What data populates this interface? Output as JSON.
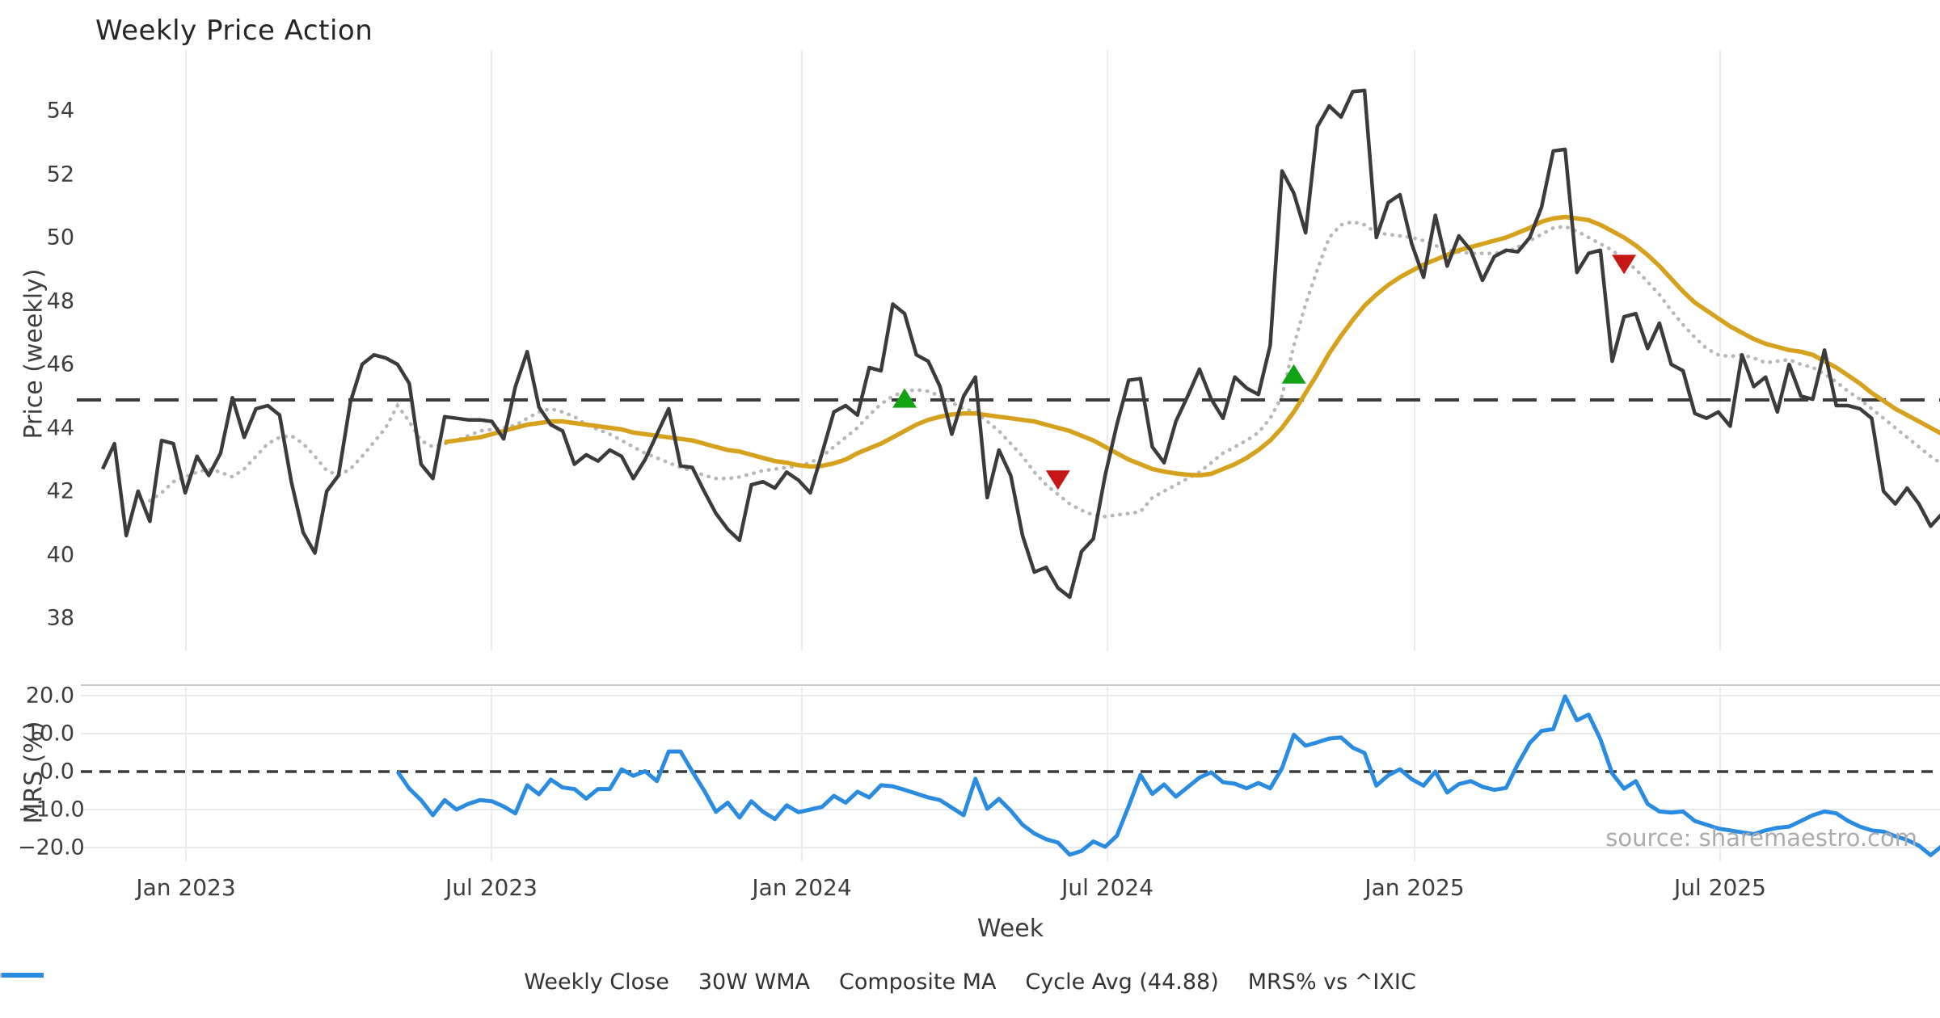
{
  "title": "Weekly Price Action",
  "watermark": "source: sharemaestro.com",
  "price_panel": {
    "ylabel": "Price (weekly)",
    "yticks": [
      {
        "label": "54",
        "value": 54
      },
      {
        "label": "52",
        "value": 52
      },
      {
        "label": "50",
        "value": 50
      },
      {
        "label": "48",
        "value": 48
      },
      {
        "label": "46",
        "value": 46
      },
      {
        "label": "44",
        "value": 44
      },
      {
        "label": "42",
        "value": 42
      },
      {
        "label": "40",
        "value": 40
      },
      {
        "label": "38",
        "value": 38
      }
    ]
  },
  "mrs_panel": {
    "ylabel": "MRS (%)",
    "yticks": [
      {
        "label": "20.0",
        "value": 20
      },
      {
        "label": "10.0",
        "value": 10
      },
      {
        "label": "0.0",
        "value": 0
      },
      {
        "label": "−10.0",
        "value": -10
      },
      {
        "label": "−20.0",
        "value": -20
      }
    ]
  },
  "xlabel": "Week",
  "xticks": [
    {
      "label": "Jan 2023",
      "week": 7.06
    },
    {
      "label": "Jul 2023",
      "week": 32.97
    },
    {
      "label": "Jan 2024",
      "week": 59.29
    },
    {
      "label": "Jul 2024",
      "week": 85.2
    },
    {
      "label": "Jan 2025",
      "week": 111.24
    },
    {
      "label": "Jul 2025",
      "week": 137.15
    }
  ],
  "legend": [
    {
      "label": "Weekly Close",
      "swatch": "solid",
      "color": "#3b3b3b"
    },
    {
      "label": "30W WMA",
      "swatch": "solid",
      "color": "#d6a21d"
    },
    {
      "label": "Composite MA",
      "swatch": "dotted",
      "color": "#b7b7b7"
    },
    {
      "label": "Cycle Avg (44.88)",
      "swatch": "dashed",
      "color": "#3b3b3b"
    },
    {
      "label": "MRS% vs ^IXIC",
      "swatch": "solid",
      "color": "#2a8ce0"
    }
  ],
  "colors": {
    "close": "#3b3b3b",
    "wma": "#d6a21d",
    "composite": "#b7b7b7",
    "cycle_avg": "#3b3b3b",
    "mrs": "#2a8ce0",
    "buy": "#12a312",
    "sell": "#c81515",
    "grid": "#ececf1",
    "spine": "#cccccc",
    "tick_text": "#3d3d3d"
  },
  "chart_data": {
    "type": "line",
    "title": "Weekly Price Action",
    "xlabel": "Week",
    "top_ylabel": "Price (weekly)",
    "bottom_ylabel": "MRS (%)",
    "cycle_avg": 44.88,
    "price_ylim": [
      37.1,
      55.6
    ],
    "mrs_ylim": [
      -24.5,
      22.3
    ],
    "legend_position": "bottom-center",
    "grid": "vertical-on-both-panels-horizontal-on-mrs",
    "series": [
      {
        "name": "Weekly Close",
        "panel": "price",
        "start_week": 0,
        "values": [
          42.7,
          43.5,
          40.6,
          42.0,
          41.05,
          43.6,
          43.5,
          41.95,
          43.1,
          42.5,
          43.2,
          44.95,
          43.7,
          44.6,
          44.7,
          44.4,
          42.3,
          40.7,
          40.05,
          42.0,
          42.5,
          44.8,
          46.0,
          46.3,
          46.2,
          46.0,
          45.4,
          42.85,
          42.4,
          44.35,
          44.3,
          44.25,
          44.25,
          44.2,
          43.65,
          45.3,
          46.4,
          44.65,
          44.1,
          43.9,
          42.85,
          43.15,
          42.95,
          43.3,
          43.1,
          42.4,
          43.0,
          43.8,
          44.6,
          42.8,
          42.75,
          42.0,
          41.3,
          40.8,
          40.45,
          42.2,
          42.3,
          42.1,
          42.6,
          42.35,
          41.95,
          43.2,
          44.5,
          44.7,
          44.4,
          45.9,
          45.8,
          47.9,
          47.6,
          46.3,
          46.1,
          45.3,
          43.8,
          45.0,
          45.6,
          41.8,
          43.3,
          42.5,
          40.6,
          39.45,
          39.6,
          38.95,
          38.66,
          40.1,
          40.5,
          42.5,
          44.1,
          45.5,
          45.55,
          43.4,
          42.9,
          44.2,
          45.0,
          45.85,
          44.9,
          44.3,
          45.6,
          45.25,
          45.05,
          46.6,
          52.1,
          51.4,
          50.15,
          53.5,
          54.15,
          53.8,
          54.6,
          54.64,
          50.0,
          51.1,
          51.35,
          49.8,
          48.75,
          50.7,
          49.1,
          50.05,
          49.6,
          48.65,
          49.4,
          49.6,
          49.55,
          50.0,
          50.95,
          52.73,
          52.78,
          48.9,
          49.5,
          49.6,
          46.1,
          47.5,
          47.6,
          46.5,
          47.3,
          46.0,
          45.8,
          44.45,
          44.3,
          44.5,
          44.05,
          46.3,
          45.3,
          45.6,
          44.5,
          46.0,
          45.0,
          44.9,
          46.45,
          44.7,
          44.7,
          44.6,
          44.3,
          42.0,
          41.6,
          42.1,
          41.6,
          40.9,
          41.3
        ]
      },
      {
        "name": "30W WMA",
        "panel": "price",
        "start_week": 29,
        "values": [
          43.55,
          43.6,
          43.65,
          43.7,
          43.8,
          43.9,
          44.0,
          44.1,
          44.15,
          44.2,
          44.2,
          44.15,
          44.1,
          44.05,
          44.0,
          43.95,
          43.85,
          43.8,
          43.75,
          43.7,
          43.65,
          43.6,
          43.5,
          43.4,
          43.3,
          43.25,
          43.15,
          43.05,
          42.95,
          42.9,
          42.82,
          42.78,
          42.8,
          42.88,
          43.0,
          43.2,
          43.35,
          43.5,
          43.7,
          43.9,
          44.1,
          44.25,
          44.35,
          44.42,
          44.45,
          44.45,
          44.4,
          44.35,
          44.3,
          44.25,
          44.2,
          44.1,
          44.0,
          43.9,
          43.75,
          43.6,
          43.4,
          43.2,
          43.0,
          42.85,
          42.7,
          42.62,
          42.56,
          42.52,
          42.5,
          42.55,
          42.7,
          42.85,
          43.05,
          43.3,
          43.6,
          44.0,
          44.5,
          45.1,
          45.7,
          46.35,
          46.9,
          47.4,
          47.85,
          48.2,
          48.5,
          48.75,
          48.95,
          49.15,
          49.3,
          49.45,
          49.6,
          49.7,
          49.8,
          49.9,
          50.0,
          50.15,
          50.3,
          50.5,
          50.6,
          50.65,
          50.6,
          50.55,
          50.4,
          50.2,
          50.0,
          49.75,
          49.45,
          49.1,
          48.7,
          48.3,
          47.95,
          47.7,
          47.45,
          47.2,
          47.0,
          46.8,
          46.65,
          46.55,
          46.45,
          46.4,
          46.3,
          46.1,
          45.9,
          45.65,
          45.4,
          45.1,
          44.85,
          44.6,
          44.4,
          44.2,
          44.0,
          43.8
        ]
      },
      {
        "name": "Composite MA",
        "panel": "price",
        "start_week": 4,
        "values": [
          41.7,
          41.95,
          42.3,
          42.45,
          42.6,
          42.7,
          42.6,
          42.45,
          42.7,
          43.1,
          43.5,
          43.7,
          43.75,
          43.5,
          43.1,
          42.65,
          42.5,
          42.7,
          43.1,
          43.55,
          44.0,
          44.7,
          44.2,
          43.6,
          43.4,
          43.5,
          43.6,
          43.75,
          43.9,
          43.95,
          44.0,
          44.08,
          44.3,
          44.5,
          44.6,
          44.5,
          44.35,
          44.1,
          43.95,
          43.8,
          43.6,
          43.4,
          43.2,
          43.05,
          42.9,
          42.75,
          42.65,
          42.5,
          42.4,
          42.4,
          42.45,
          42.55,
          42.65,
          42.7,
          42.75,
          42.8,
          42.9,
          43.1,
          43.4,
          43.7,
          44.0,
          44.4,
          44.75,
          45.0,
          45.15,
          45.2,
          45.15,
          45.0,
          44.8,
          44.6,
          44.5,
          44.2,
          43.9,
          43.5,
          43.1,
          42.6,
          42.2,
          41.9,
          41.6,
          41.4,
          41.25,
          41.2,
          41.25,
          41.3,
          41.35,
          41.8,
          42.0,
          42.2,
          42.4,
          42.6,
          42.9,
          43.2,
          43.4,
          43.6,
          43.85,
          44.3,
          45.0,
          46.6,
          47.9,
          49.0,
          50.0,
          50.4,
          50.5,
          50.4,
          50.15,
          50.1,
          50.05,
          50.0,
          49.9,
          49.75,
          49.6,
          49.55,
          49.5,
          49.5,
          49.5,
          49.55,
          49.7,
          49.9,
          50.1,
          50.3,
          50.35,
          50.2,
          50.0,
          49.8,
          49.6,
          49.3,
          49.0,
          48.6,
          48.2,
          47.7,
          47.25,
          46.85,
          46.5,
          46.3,
          46.25,
          46.3,
          46.2,
          46.05,
          46.1,
          46.15,
          46.0,
          45.9,
          45.7,
          45.45,
          45.15,
          44.9,
          44.6,
          44.3,
          44.0,
          43.7,
          43.4,
          43.1,
          42.85
        ]
      },
      {
        "name": "MRS% vs ^IXIC",
        "panel": "mrs",
        "start_week": 25,
        "values": [
          0.0,
          -4.5,
          -7.5,
          -11.5,
          -7.5,
          -10.0,
          -8.5,
          -7.5,
          -7.8,
          -9.2,
          -11.0,
          -3.6,
          -6.0,
          -2.1,
          -4.2,
          -4.6,
          -7.1,
          -4.6,
          -4.6,
          0.6,
          -1.1,
          0.1,
          -2.5,
          5.3,
          5.3,
          0.0,
          -5.0,
          -10.6,
          -8.2,
          -12.1,
          -7.8,
          -10.6,
          -12.5,
          -8.9,
          -10.7,
          -10.0,
          -9.3,
          -6.4,
          -8.2,
          -5.3,
          -6.8,
          -3.6,
          -3.9,
          -4.8,
          -5.8,
          -6.8,
          -7.5,
          -9.5,
          -11.5,
          -1.9,
          -9.8,
          -7.2,
          -10.3,
          -14.0,
          -16.3,
          -17.8,
          -18.7,
          -21.9,
          -20.9,
          -18.4,
          -19.8,
          -16.9,
          -9.1,
          -0.9,
          -5.9,
          -3.4,
          -6.6,
          -4.1,
          -1.6,
          -0.2,
          -2.8,
          -3.2,
          -4.4,
          -3.0,
          -4.4,
          0.9,
          9.7,
          6.8,
          7.7,
          8.7,
          9.0,
          6.3,
          4.9,
          -3.7,
          -1.0,
          0.6,
          -2.0,
          -3.7,
          0.0,
          -5.5,
          -3.3,
          -2.5,
          -4.0,
          -4.8,
          -4.3,
          2.0,
          7.5,
          10.7,
          11.2,
          19.8,
          13.5,
          15.0,
          8.5,
          -0.5,
          -4.5,
          -2.5,
          -8.5,
          -10.5,
          -10.8,
          -10.5,
          -13.0,
          -14.0,
          -15.0,
          -15.5,
          -16.0,
          -16.5,
          -15.5,
          -14.8,
          -14.5,
          -13.0,
          -11.5,
          -10.5,
          -11.0,
          -13.0,
          -14.5,
          -15.5,
          -15.8,
          -17.0,
          -18.0,
          -19.5,
          -22.0,
          -19.5
        ]
      }
    ],
    "markers": [
      {
        "type": "buy",
        "week": 68,
        "value": 44.94
      },
      {
        "type": "sell",
        "week": 81,
        "value": 42.35
      },
      {
        "type": "buy",
        "week": 101,
        "value": 45.7
      },
      {
        "type": "sell",
        "week": 129,
        "value": 49.15
      }
    ]
  }
}
